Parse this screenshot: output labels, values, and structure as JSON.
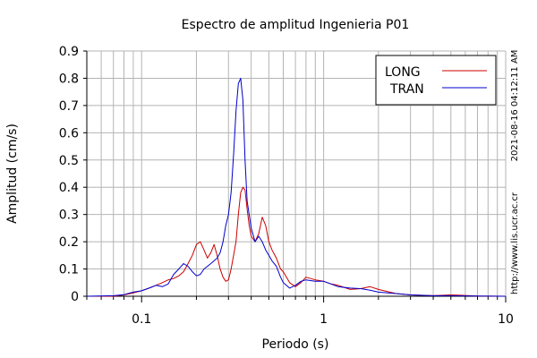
{
  "chart_data": {
    "type": "line",
    "title": "Espectro de amplitud Ingenieria P01",
    "xlabel": "Periodo (s)",
    "ylabel": "Amplitud (cm/s)",
    "xscale": "log",
    "xlim": [
      0.05,
      10
    ],
    "ylim": [
      0,
      0.9
    ],
    "grid": true,
    "legend_position": "top-right",
    "x_tick_labels": [
      "0.1",
      "1",
      "10"
    ],
    "y_tick_labels": [
      "0",
      "0.1",
      "0.2",
      "0.3",
      "0.4",
      "0.5",
      "0.6",
      "0.7",
      "0.8",
      "0.9"
    ],
    "side_texts": [
      "2021-08-16 04:12:11 AM",
      "http://www.lis.ucr.ac.cr"
    ],
    "series": [
      {
        "name": "LONG",
        "color": "#cc0000",
        "x": [
          0.05,
          0.07,
          0.08,
          0.09,
          0.1,
          0.11,
          0.12,
          0.13,
          0.14,
          0.15,
          0.16,
          0.17,
          0.18,
          0.19,
          0.2,
          0.21,
          0.22,
          0.23,
          0.24,
          0.25,
          0.26,
          0.27,
          0.28,
          0.29,
          0.3,
          0.31,
          0.32,
          0.33,
          0.34,
          0.35,
          0.36,
          0.37,
          0.38,
          0.39,
          0.4,
          0.42,
          0.44,
          0.46,
          0.48,
          0.5,
          0.52,
          0.55,
          0.58,
          0.6,
          0.65,
          0.7,
          0.75,
          0.8,
          0.9,
          1.0,
          1.1,
          1.2,
          1.4,
          1.6,
          1.8,
          2.0,
          2.5,
          3.0,
          4.0,
          5.0,
          7.0,
          10.0
        ],
        "y": [
          0.0,
          0.0,
          0.005,
          0.012,
          0.02,
          0.03,
          0.04,
          0.05,
          0.06,
          0.065,
          0.075,
          0.09,
          0.12,
          0.15,
          0.19,
          0.2,
          0.17,
          0.14,
          0.16,
          0.19,
          0.15,
          0.1,
          0.07,
          0.055,
          0.06,
          0.1,
          0.15,
          0.2,
          0.3,
          0.38,
          0.4,
          0.39,
          0.32,
          0.26,
          0.22,
          0.2,
          0.23,
          0.29,
          0.26,
          0.2,
          0.17,
          0.14,
          0.1,
          0.09,
          0.05,
          0.035,
          0.05,
          0.07,
          0.06,
          0.055,
          0.045,
          0.04,
          0.025,
          0.028,
          0.035,
          0.025,
          0.01,
          0.005,
          0.002,
          0.005,
          0.001,
          0.0
        ]
      },
      {
        "name": "TRAN",
        "color": "#0000cc",
        "x": [
          0.05,
          0.07,
          0.08,
          0.09,
          0.1,
          0.11,
          0.12,
          0.13,
          0.14,
          0.15,
          0.16,
          0.17,
          0.18,
          0.19,
          0.2,
          0.21,
          0.22,
          0.23,
          0.24,
          0.25,
          0.26,
          0.27,
          0.28,
          0.29,
          0.3,
          0.31,
          0.32,
          0.33,
          0.34,
          0.35,
          0.36,
          0.37,
          0.38,
          0.39,
          0.4,
          0.42,
          0.44,
          0.46,
          0.48,
          0.5,
          0.52,
          0.55,
          0.58,
          0.6,
          0.65,
          0.7,
          0.75,
          0.8,
          0.9,
          1.0,
          1.1,
          1.2,
          1.4,
          1.6,
          1.8,
          2.0,
          2.5,
          3.0,
          4.0,
          5.0,
          7.0,
          10.0
        ],
        "y": [
          0.0,
          0.002,
          0.006,
          0.015,
          0.02,
          0.03,
          0.04,
          0.035,
          0.045,
          0.08,
          0.1,
          0.12,
          0.11,
          0.09,
          0.075,
          0.08,
          0.1,
          0.11,
          0.12,
          0.13,
          0.14,
          0.16,
          0.2,
          0.26,
          0.3,
          0.38,
          0.52,
          0.68,
          0.78,
          0.8,
          0.72,
          0.5,
          0.35,
          0.3,
          0.25,
          0.2,
          0.22,
          0.2,
          0.17,
          0.15,
          0.13,
          0.11,
          0.07,
          0.05,
          0.03,
          0.04,
          0.055,
          0.06,
          0.055,
          0.055,
          0.045,
          0.035,
          0.03,
          0.028,
          0.022,
          0.015,
          0.01,
          0.005,
          0.002,
          0.002,
          0.001,
          0.0
        ]
      }
    ]
  }
}
